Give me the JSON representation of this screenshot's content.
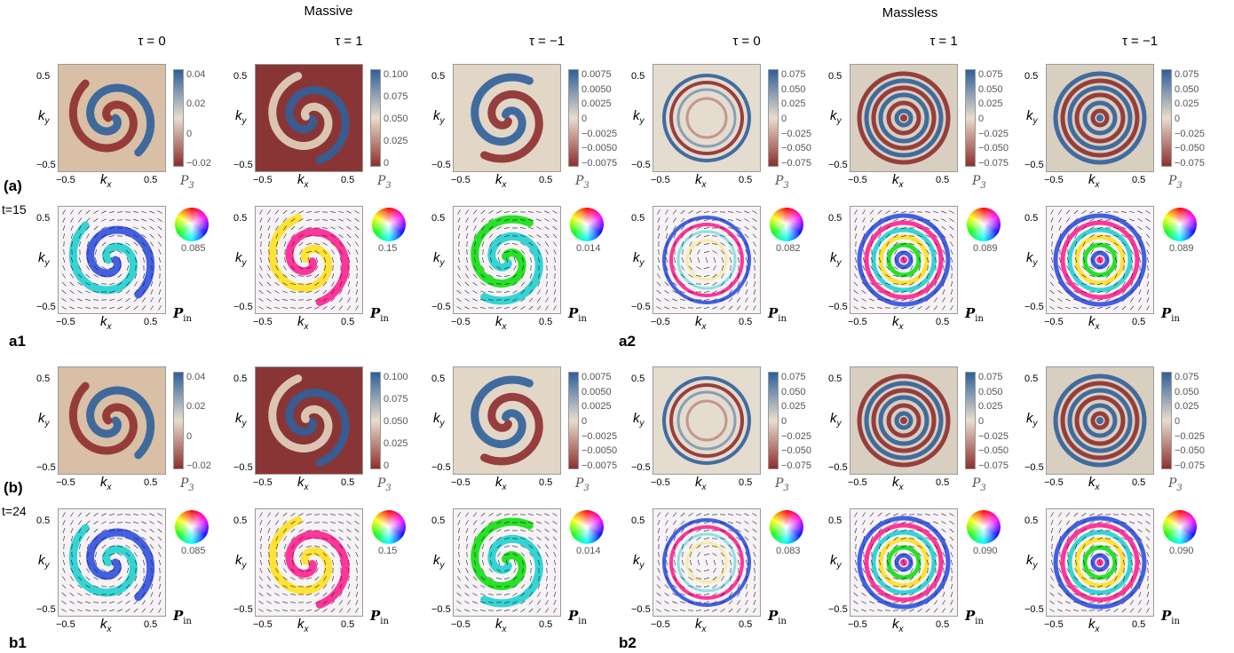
{
  "headers": {
    "massive": "Massive",
    "massless": "Massless"
  },
  "taus": [
    "τ = 0",
    "τ = 1",
    "τ = −1",
    "τ = 0",
    "τ = 1",
    "τ = −1"
  ],
  "axis": {
    "x": "k",
    "x_sub": "x",
    "y": "k",
    "y_sub": "y",
    "ticks": [
      "−0.5",
      "0",
      "0.5"
    ]
  },
  "p3_label": "P",
  "p3_sub": "3",
  "pin_label": "P",
  "pin_sub": "in",
  "panel_labels": {
    "a": "(a)",
    "b": "(b)",
    "a1": "a1",
    "a2": "a2",
    "b1": "b1",
    "b2": "b2"
  },
  "times": {
    "a": "t=15",
    "b": "t=24"
  },
  "colorbars": [
    [
      "0.04",
      "0.02",
      "0",
      "−0.02"
    ],
    [
      "0.100",
      "0.075",
      "0.050",
      "0.025",
      "0"
    ],
    [
      "0.0075",
      "0.0050",
      "0.0025",
      "0",
      "−0.0025",
      "−0.0050",
      "−0.0075"
    ],
    [
      "0.075",
      "0.050",
      "0.025",
      "0",
      "−0.025",
      "−0.050",
      "−0.075"
    ],
    [
      "0.075",
      "0.050",
      "0.025",
      "0",
      "−0.025",
      "−0.050",
      "−0.075"
    ],
    [
      "0.075",
      "0.050",
      "0.025",
      "0",
      "−0.025",
      "−0.050",
      "−0.075"
    ]
  ],
  "wheel_max": {
    "t15": [
      "0.085",
      "0.15",
      "0.014",
      "0.082",
      "0.089",
      "0.089"
    ],
    "t24": [
      "0.085",
      "0.15",
      "0.014",
      "0.083",
      "0.090",
      "0.090"
    ]
  },
  "colors": {
    "blue": "#2f5f9a",
    "red": "#8e2e2e",
    "mid": "#e6d8c4"
  }
}
